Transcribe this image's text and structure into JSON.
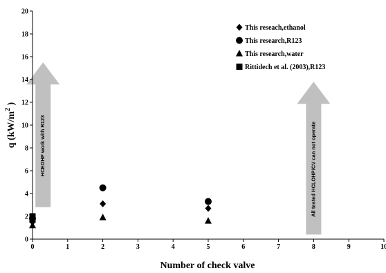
{
  "chart_data": {
    "type": "scatter",
    "title": "",
    "xlabel": "Number of check  valve",
    "ylabel_main": "q  (kW/m",
    "ylabel_sup": "2",
    "ylabel_end": " )",
    "xlim": [
      0,
      10
    ],
    "ylim": [
      0,
      20
    ],
    "x_ticks": [
      "0",
      "1",
      "2",
      "3",
      "4",
      "5",
      "6",
      "7",
      "8",
      "9",
      "10"
    ],
    "y_ticks": [
      "0",
      "2",
      "4",
      "6",
      "8",
      "10",
      "12",
      "14",
      "16",
      "18",
      "20"
    ],
    "grid": false,
    "legend_position": "top-right",
    "series": [
      {
        "name": "This reseach,ethanol",
        "marker": "diamond",
        "points": [
          [
            0,
            1.5
          ],
          [
            2,
            3.1
          ],
          [
            5,
            2.7
          ]
        ]
      },
      {
        "name": "This research,R123",
        "marker": "circle",
        "points": [
          [
            0,
            1.8
          ],
          [
            2,
            4.5
          ],
          [
            5,
            3.3
          ]
        ]
      },
      {
        "name": "This research,water",
        "marker": "triangle",
        "points": [
          [
            0,
            1.2
          ],
          [
            2,
            1.9
          ],
          [
            5,
            1.6
          ]
        ]
      },
      {
        "name": "Rittidech et al. (2003),R123",
        "marker": "square",
        "points": [
          [
            0,
            2.0
          ],
          [
            0,
            1.7
          ]
        ]
      }
    ],
    "annotations": [
      {
        "text": "HCEOHP  work  with  R123",
        "x": 0.3,
        "y_base": 2.8,
        "y_tip": 15.5
      },
      {
        "text": "All tested  HCLOHP/CV  can  not  operate",
        "x": 8.0,
        "y_base": 0.4,
        "y_tip": 13.8
      }
    ],
    "color": "#000000",
    "arrow_color": "#c0c0c0"
  }
}
